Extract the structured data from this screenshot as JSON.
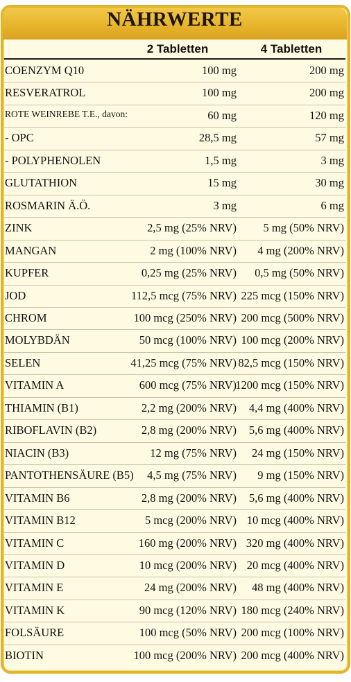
{
  "title": "NÄHRWERTE",
  "columns": [
    "2 Tabletten",
    "4 Tabletten"
  ],
  "rows": [
    {
      "name": "COENZYM Q10",
      "v1": "100 mg",
      "v2": "200 mg"
    },
    {
      "name": "RESVERATROL",
      "v1": "100 mg",
      "v2": "200 mg"
    },
    {
      "name": "ROTE WEINREBE T.E., davon:",
      "v1": "60 mg",
      "v2": "120 mg"
    },
    {
      "name": " - OPC",
      "v1": "28,5 mg",
      "v2": "57 mg"
    },
    {
      "name": " - POLYPHENOLEN",
      "v1": "1,5 mg",
      "v2": "3 mg"
    },
    {
      "name": "GLUTATHION",
      "v1": "15 mg",
      "v2": "30 mg"
    },
    {
      "name": "ROSMARIN Ä.Ö.",
      "v1": "3 mg",
      "v2": "6 mg"
    },
    {
      "name": "ZINK",
      "v1": "2,5 mg (25% NRV)",
      "v2": "5 mg (50% NRV)"
    },
    {
      "name": "MANGAN",
      "v1": "2 mg (100% NRV)",
      "v2": "4 mg (200% NRV)"
    },
    {
      "name": "KUPFER",
      "v1": "0,25 mg (25% NRV)",
      "v2": "0,5 mg (50% NRV)"
    },
    {
      "name": "JOD",
      "v1": "112,5 mcg (75% NRV)",
      "v2": "225 mcg (150% NRV)"
    },
    {
      "name": "CHROM",
      "v1": "100 mcg (250% NRV)",
      "v2": "200 mcg (500% NRV)"
    },
    {
      "name": "MOLYBDÄN",
      "v1": "50 mcg (100% NRV)",
      "v2": "100 mcg (200% NRV)"
    },
    {
      "name": "SELEN",
      "v1": "41,25 mcg (75% NRV)",
      "v2": "82,5 mcg (150% NRV)"
    },
    {
      "name": "VITAMIN A",
      "v1": "600 mcg (75% NRV)",
      "v2": "1200 mcg (150% NRV)"
    },
    {
      "name": "THIAMIN (B1)",
      "v1": "2,2 mg (200% NRV)",
      "v2": "4,4 mg (400% NRV)"
    },
    {
      "name": "RIBOFLAVIN (B2)",
      "v1": "2,8 mg (200% NRV)",
      "v2": "5,6 mg (400% NRV)"
    },
    {
      "name": "NIACIN (B3)",
      "v1": "12 mg (75% NRV)",
      "v2": "24 mg (150% NRV)"
    },
    {
      "name": "PANTOTHENSÄURE (B5)",
      "v1": "4,5 mg (75% NRV)",
      "v2": "9 mg (150% NRV)"
    },
    {
      "name": "VITAMIN B6",
      "v1": "2,8 mg (200% NRV)",
      "v2": "5,6 mg (400% NRV)"
    },
    {
      "name": "VITAMIN B12",
      "v1": "5 mcg (200% NRV)",
      "v2": "10 mcg (400% NRV)"
    },
    {
      "name": "VITAMIN C",
      "v1": "160 mg (200% NRV)",
      "v2": "320 mg (400% NRV)"
    },
    {
      "name": "VITAMIN D",
      "v1": "10 mcg (200% NRV)",
      "v2": "20 mcg (400% NRV)"
    },
    {
      "name": "VITAMIN E",
      "v1": "24 mg (200% NRV)",
      "v2": "48 mg (400% NRV)"
    },
    {
      "name": "VITAMIN K",
      "v1": "90 mcg (120% NRV)",
      "v2": "180 mcg (240% NRV)"
    },
    {
      "name": "FOLSÄURE",
      "v1": "100 mcg (50% NRV)",
      "v2": "200 mcg (100% NRV)"
    },
    {
      "name": "BIOTIN",
      "v1": "100 mcg (200% NRV)",
      "v2": "200 mcg (400% NRV)"
    }
  ]
}
